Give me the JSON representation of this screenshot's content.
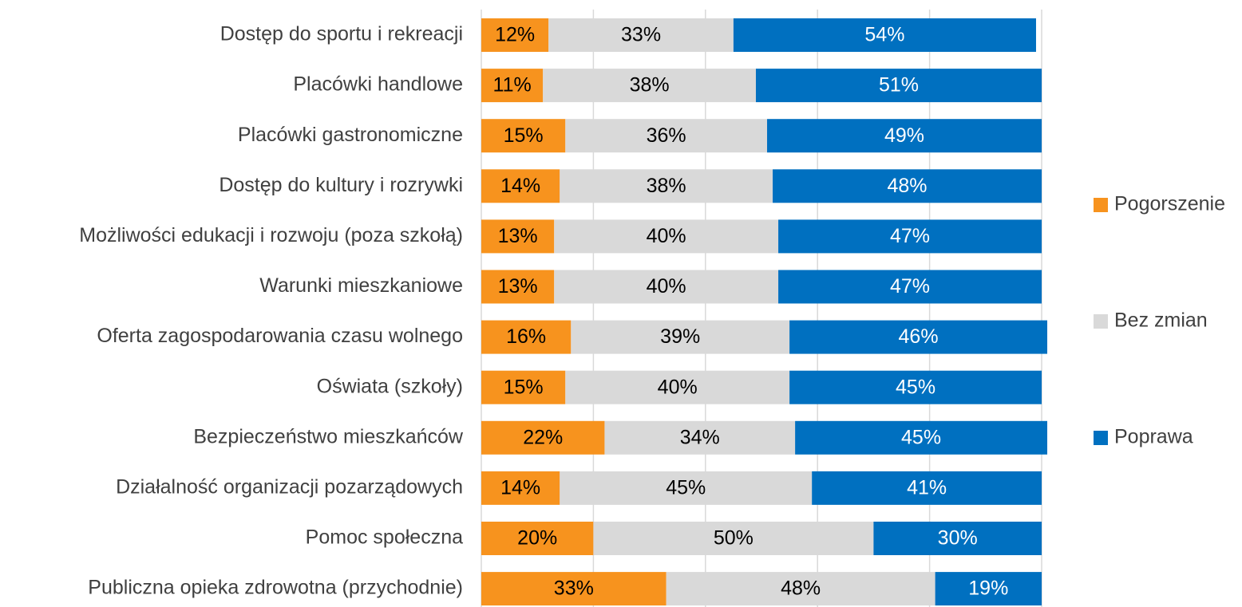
{
  "chart_data": {
    "type": "stacked-bar-horizontal",
    "categories": [
      "Dostęp do sportu i rekreacji",
      "Placówki handlowe",
      "Placówki gastronomiczne",
      "Dostęp do kultury i rozrywki",
      "Możliwości edukacji i rozwoju (poza szkołą)",
      "Warunki mieszkaniowe",
      "Oferta zagospodarowania czasu wolnego",
      "Oświata (szkoły)",
      "Bezpieczeństwo mieszkańców",
      "Działalność organizacji pozarządowych",
      "Pomoc społeczna",
      "Publiczna opieka zdrowotna (przychodnie)"
    ],
    "series": [
      {
        "name": "Pogorszenie",
        "color": "#f7931e",
        "label_color": "#000000",
        "values": [
          12,
          11,
          15,
          14,
          13,
          13,
          16,
          15,
          22,
          14,
          20,
          33
        ],
        "value_labels": [
          "12%",
          "11%",
          "15%",
          "14%",
          "13%",
          "13%",
          "16%",
          "15%",
          "22%",
          "14%",
          "20%",
          "33%"
        ]
      },
      {
        "name": "Bez zmian",
        "color": "#d9d9d9",
        "label_color": "#000000",
        "values": [
          33,
          38,
          36,
          38,
          40,
          40,
          39,
          40,
          34,
          45,
          50,
          48
        ],
        "value_labels": [
          "33%",
          "38%",
          "36%",
          "38%",
          "40%",
          "40%",
          "39%",
          "40%",
          "34%",
          "45%",
          "50%",
          "48%"
        ]
      },
      {
        "name": "Poprawa",
        "color": "#0070c0",
        "label_color": "#ffffff",
        "values": [
          54,
          51,
          49,
          48,
          47,
          47,
          46,
          45,
          45,
          41,
          30,
          19
        ],
        "value_labels": [
          "54%",
          "51%",
          "49%",
          "48%",
          "47%",
          "47%",
          "46%",
          "45%",
          "45%",
          "41%",
          "30%",
          "19%"
        ]
      }
    ],
    "xlim": [
      0,
      100
    ],
    "xticks": [
      0,
      20,
      40,
      60,
      80,
      100
    ],
    "grid": true,
    "legend": "right"
  }
}
